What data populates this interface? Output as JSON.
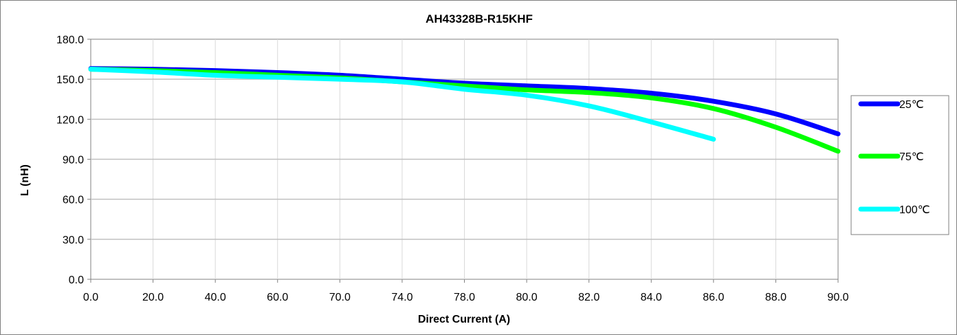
{
  "chart_data": {
    "type": "line",
    "title": "AH43328B-R15KHF",
    "xlabel": "Direct Current (A)",
    "ylabel": "L (nH)",
    "x_tick_labels": [
      "0.0",
      "20.0",
      "40.0",
      "60.0",
      "70.0",
      "74.0",
      "78.0",
      "80.0",
      "82.0",
      "84.0",
      "86.0",
      "88.0",
      "90.0"
    ],
    "y_tick_labels": [
      "0.0",
      "30.0",
      "60.0",
      "90.0",
      "120.0",
      "150.0",
      "180.0"
    ],
    "ylim": [
      0,
      180
    ],
    "grid": true,
    "legend_position": "right",
    "x": [
      "0.0",
      "20.0",
      "40.0",
      "60.0",
      "70.0",
      "74.0",
      "78.0",
      "80.0",
      "82.0",
      "84.0",
      "86.0",
      "88.0",
      "90.0"
    ],
    "series": [
      {
        "name": "25℃",
        "color": "#0000ff",
        "values": [
          158,
          157.5,
          156.5,
          155,
          153,
          150,
          147,
          145,
          143,
          139.5,
          133.5,
          124,
          109
        ]
      },
      {
        "name": "75℃",
        "color": "#00ff00",
        "values": [
          157.5,
          156.5,
          155,
          153,
          151,
          148,
          145,
          142,
          140,
          136,
          128,
          114,
          96
        ]
      },
      {
        "name": "100℃",
        "color": "#00ffff",
        "values": [
          157.5,
          155.5,
          153,
          151.5,
          150,
          148,
          142.5,
          138,
          130,
          118,
          105,
          null,
          null
        ]
      }
    ]
  }
}
